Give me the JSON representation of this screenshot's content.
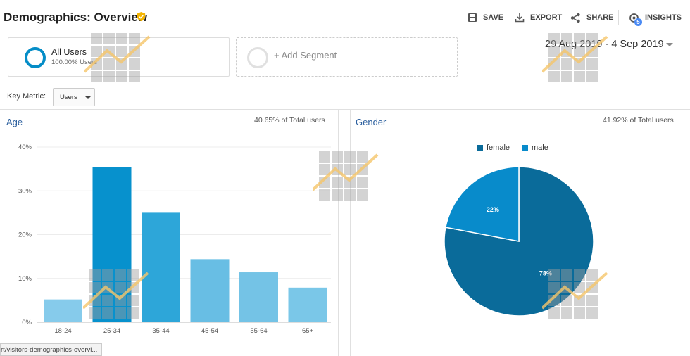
{
  "header": {
    "title": "Demographics: Overview",
    "actions": [
      {
        "label": "SAVE",
        "icon": "save-icon"
      },
      {
        "label": "EXPORT",
        "icon": "export-icon"
      },
      {
        "label": "SHARE",
        "icon": "share-icon"
      },
      {
        "label": "INSIGHTS",
        "icon": "insights-icon",
        "badge": "5"
      }
    ]
  },
  "segments": {
    "all_users": {
      "name": "All Users",
      "percent": "100.00% Users"
    },
    "add_label": "+ Add Segment"
  },
  "date_range": "29 Aug 2019 - 4 Sep 2019",
  "key_metric": {
    "label": "Key Metric:",
    "value": "Users"
  },
  "age_panel": {
    "title": "Age",
    "note": "40.65% of Total users"
  },
  "gender_panel": {
    "title": "Gender",
    "note": "41.92% of Total users",
    "legend": [
      {
        "name": "female",
        "color": "#0a6b9a"
      },
      {
        "name": "male",
        "color": "#088bcb"
      }
    ]
  },
  "status_url": "rt/visitors-demographics-overvi...",
  "colors": {
    "accent": "#058dc7",
    "title_blue": "#2b5f9e",
    "badge_yellow": "#f4b400"
  },
  "chart_data": [
    {
      "type": "bar",
      "title": "Age",
      "categories": [
        "18-24",
        "25-34",
        "35-44",
        "45-54",
        "55-64",
        "65+"
      ],
      "values": [
        5.2,
        35.4,
        25.0,
        14.4,
        11.4,
        7.9
      ],
      "bar_colors": [
        "#86cbeb",
        "#0791cd",
        "#2da6d9",
        "#68bee4",
        "#74c3e6",
        "#7ac7e8"
      ],
      "ylim": [
        0,
        40
      ],
      "yticks": [
        "0%",
        "10%",
        "20%",
        "30%",
        "40%"
      ],
      "grid": true
    },
    {
      "type": "pie",
      "title": "Gender",
      "series": [
        {
          "name": "female",
          "value": 78,
          "label": "78%",
          "color": "#0a6b9a"
        },
        {
          "name": "male",
          "value": 22,
          "label": "22%",
          "color": "#088bcb"
        }
      ]
    }
  ]
}
